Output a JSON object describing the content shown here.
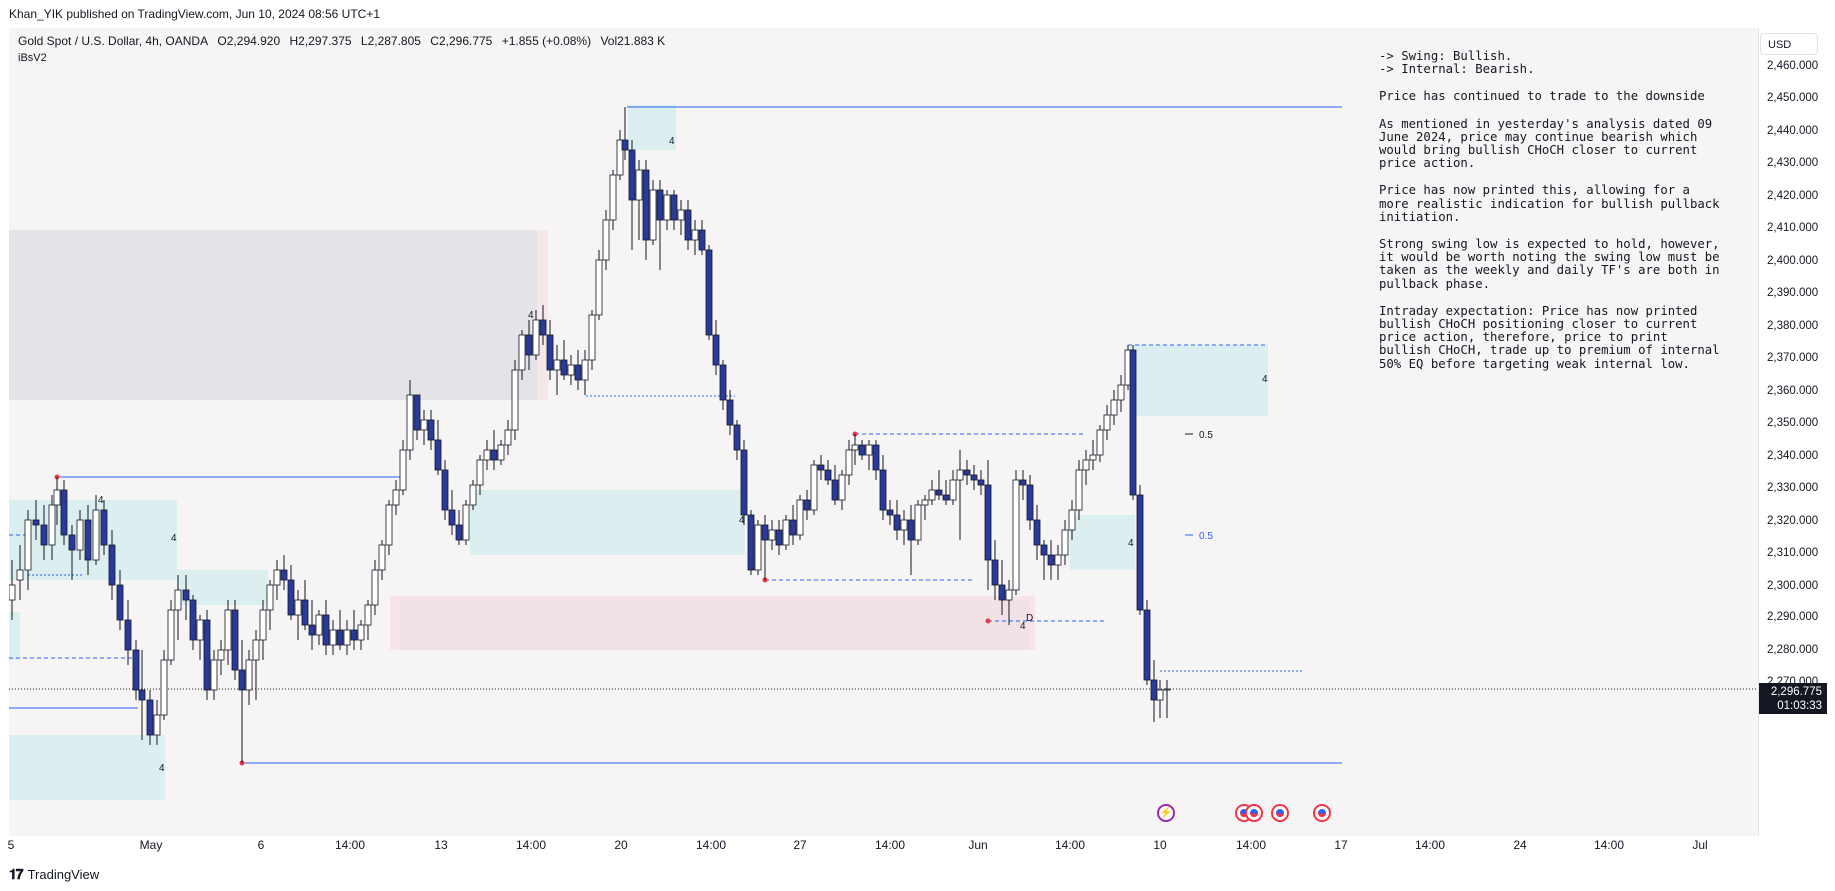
{
  "header": {
    "published": "Khan_YIK published on TradingView.com, Jun 10, 2024 08:56 UTC+1"
  },
  "legend": {
    "symbol": "Gold Spot / U.S. Dollar, 4h, OANDA",
    "open": "O2,294.920",
    "high": "H2,297.375",
    "low": "L2,287.805",
    "close": "C2,296.775",
    "change": "+1.855 (+0.08%)",
    "volume": "Vol21.883 K",
    "indicator": "iBsV2"
  },
  "notes": {
    "swing": "-> Swing:  Bullish.",
    "internal": "-> Internal:  Bearish.",
    "p1": "Price has continued to trade to the downside",
    "p2": "As mentioned in yesterday's analysis dated 09 June 2024, price may continue bearish which would bring bullish CHoCH closer to current price action.",
    "p3": "Price has now printed this, allowing for a more realistic indication for bullish pullback initiation.",
    "p4": "Strong swing low is expected to hold, however, it would be worth noting the swing low must be taken as the weekly and daily TF's are both in pullback phase.",
    "p5": "Intraday expectation:  Price has now printed bullish CHoCH positioning closer to current price action, therefore, price to print bullish CHoCH, trade up to premium of internal 50% EQ before targeting weak internal low."
  },
  "price_axis": {
    "currency": "USD",
    "labels": [
      "2,460.000",
      "2,450.000",
      "2,440.000",
      "2,430.000",
      "2,420.000",
      "2,410.000",
      "2,400.000",
      "2,390.000",
      "2,380.000",
      "2,370.000",
      "2,360.000",
      "2,350.000",
      "2,340.000",
      "2,330.000",
      "2,320.000",
      "2,310.000",
      "2,300.000",
      "2,290.000",
      "2,280.000",
      "2,270.000"
    ],
    "current_price": "2,296.775",
    "countdown": "01:03:33"
  },
  "time_axis": {
    "labels": [
      "5",
      "May",
      "6",
      "14:00",
      "13",
      "14:00",
      "20",
      "14:00",
      "27",
      "14:00",
      "Jun",
      "14:00",
      "10",
      "14:00",
      "17",
      "14:00",
      "24",
      "14:00",
      "Jul"
    ]
  },
  "annotations": {
    "eq_upper": "0.5",
    "eq_lower": "0.5",
    "zone_tag": "4",
    "d_tag": "D"
  },
  "events": [
    "lightning-event",
    "us-flag-event",
    "us-flag-event",
    "us-flag-event",
    "us-flag-event"
  ],
  "footer": {
    "brand": "TradingView"
  },
  "colors": {
    "bull_candle": "#ffffff",
    "bear_candle": "#2a3a9c",
    "wick": "#131722",
    "structure_line": "#2962ff",
    "demand_zone": "#dbeff0",
    "supply_zone": "#e3e3e8",
    "ob_zone": "#f6e4e8",
    "swing_point": "#f23645"
  }
}
